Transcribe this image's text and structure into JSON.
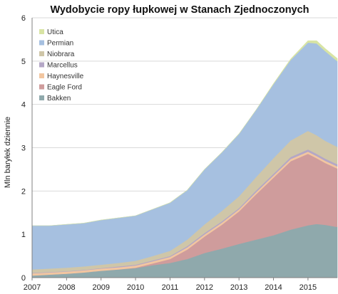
{
  "chart_data": {
    "type": "area",
    "stacked": true,
    "title": "Wydobycie ropy łupkowej  w Stanach Zjednoczonych",
    "xlabel": "",
    "ylabel": "Mln baryłek dziennie",
    "xlim": [
      2007,
      2015.85
    ],
    "ylim": [
      0,
      6
    ],
    "yticks": [
      "0",
      "1",
      "2",
      "3",
      "4",
      "5",
      "6"
    ],
    "xticks": [
      "2007",
      "2008",
      "2009",
      "2010",
      "2011",
      "2012",
      "2013",
      "2014",
      "2015"
    ],
    "grid": "horizontal",
    "legend_position": "top-left",
    "x": [
      2007.0,
      2007.5,
      2008.0,
      2008.5,
      2009.0,
      2009.5,
      2010.0,
      2010.5,
      2011.0,
      2011.5,
      2012.0,
      2012.5,
      2013.0,
      2013.5,
      2014.0,
      2014.5,
      2015.0,
      2015.25,
      2015.5,
      2015.85
    ],
    "series": [
      {
        "name": "Bakken",
        "color": "#8fa9ac",
        "values": [
          0.05,
          0.07,
          0.09,
          0.12,
          0.16,
          0.19,
          0.22,
          0.29,
          0.34,
          0.43,
          0.57,
          0.67,
          0.78,
          0.88,
          0.98,
          1.11,
          1.21,
          1.24,
          1.22,
          1.17
        ]
      },
      {
        "name": "Eagle Ford",
        "color": "#cf9c9c",
        "values": [
          0.0,
          0.0,
          0.0,
          0.0,
          0.0,
          0.0,
          0.01,
          0.04,
          0.09,
          0.22,
          0.38,
          0.55,
          0.75,
          1.05,
          1.33,
          1.58,
          1.65,
          1.52,
          1.43,
          1.35
        ]
      },
      {
        "name": "Haynesville",
        "color": "#f2c6a0",
        "values": [
          0.05,
          0.05,
          0.05,
          0.05,
          0.05,
          0.05,
          0.05,
          0.05,
          0.05,
          0.05,
          0.05,
          0.05,
          0.05,
          0.05,
          0.05,
          0.05,
          0.05,
          0.05,
          0.05,
          0.05
        ]
      },
      {
        "name": "Marcellus",
        "color": "#b4a7c6",
        "values": [
          0.01,
          0.01,
          0.01,
          0.01,
          0.01,
          0.02,
          0.02,
          0.02,
          0.02,
          0.03,
          0.03,
          0.03,
          0.03,
          0.04,
          0.04,
          0.05,
          0.05,
          0.05,
          0.05,
          0.05
        ]
      },
      {
        "name": "Niobrara",
        "color": "#cfc6a8",
        "values": [
          0.08,
          0.08,
          0.08,
          0.08,
          0.08,
          0.08,
          0.09,
          0.1,
          0.12,
          0.15,
          0.2,
          0.24,
          0.27,
          0.31,
          0.36,
          0.38,
          0.43,
          0.43,
          0.41,
          0.4
        ]
      },
      {
        "name": "Permian",
        "color": "#a6c0e0",
        "values": [
          1.01,
          0.99,
          1.0,
          1.0,
          1.03,
          1.04,
          1.04,
          1.08,
          1.11,
          1.14,
          1.27,
          1.35,
          1.44,
          1.55,
          1.71,
          1.86,
          2.04,
          2.12,
          2.07,
          1.98
        ]
      },
      {
        "name": "Utica",
        "color": "#d8e4a4",
        "values": [
          0.0,
          0.0,
          0.0,
          0.0,
          0.0,
          0.0,
          0.0,
          0.0,
          0.0,
          0.0,
          0.0,
          0.0,
          0.0,
          0.0,
          0.01,
          0.02,
          0.04,
          0.06,
          0.06,
          0.06
        ]
      }
    ],
    "legend_order": [
      "Utica",
      "Permian",
      "Niobrara",
      "Marcellus",
      "Haynesville",
      "Eagle Ford",
      "Bakken"
    ]
  }
}
